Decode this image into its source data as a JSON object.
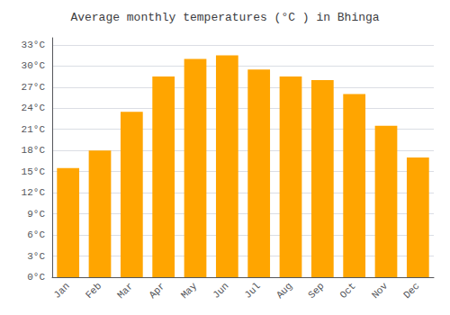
{
  "chart_data": {
    "type": "bar",
    "title": "Average monthly temperatures (°C ) in Bhinga",
    "categories": [
      "Jan",
      "Feb",
      "Mar",
      "Apr",
      "May",
      "Jun",
      "Jul",
      "Aug",
      "Sep",
      "Oct",
      "Nov",
      "Dec"
    ],
    "values": [
      15.5,
      18.0,
      23.5,
      28.5,
      31.0,
      31.5,
      29.5,
      28.5,
      28.0,
      26.0,
      21.5,
      17.0
    ],
    "color": "#FFA500",
    "ylim": [
      0,
      34
    ],
    "yticks": [
      {
        "value": 0,
        "label": "0°C"
      },
      {
        "value": 3,
        "label": "3°C"
      },
      {
        "value": 6,
        "label": "6°C"
      },
      {
        "value": 9,
        "label": "9°C"
      },
      {
        "value": 12,
        "label": "12°C"
      },
      {
        "value": 15,
        "label": "15°C"
      },
      {
        "value": 18,
        "label": "18°C"
      },
      {
        "value": 21,
        "label": "21°C"
      },
      {
        "value": 24,
        "label": "24°C"
      },
      {
        "value": 27,
        "label": "27°C"
      },
      {
        "value": 30,
        "label": "30°C"
      },
      {
        "value": 33,
        "label": "33°C"
      }
    ],
    "grid": true
  }
}
